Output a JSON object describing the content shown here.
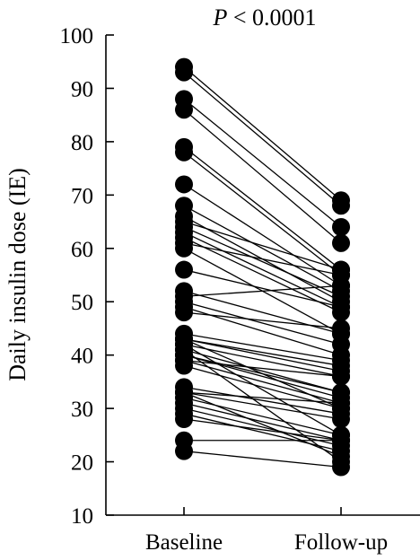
{
  "chart_data": {
    "type": "scatter",
    "subtype": "paired-slope",
    "annotation": {
      "p_symbol": "P",
      "p_rest": " < 0.0001"
    },
    "ylabel": "Daily insulin dose (IE)",
    "xlabel": "",
    "categories": [
      "Baseline",
      "Follow-up"
    ],
    "ylim": [
      10,
      100
    ],
    "yticks": [
      10,
      20,
      30,
      40,
      50,
      60,
      70,
      80,
      90,
      100
    ],
    "legend": "none",
    "grid": false,
    "marker_color": "#000000",
    "line_color": "#000000",
    "pairs": [
      [
        94,
        69
      ],
      [
        93,
        68
      ],
      [
        88,
        64
      ],
      [
        86,
        61
      ],
      [
        79,
        56
      ],
      [
        78,
        55
      ],
      [
        72,
        53
      ],
      [
        68,
        52
      ],
      [
        66,
        50
      ],
      [
        65,
        56
      ],
      [
        64,
        51
      ],
      [
        63,
        49
      ],
      [
        62,
        48
      ],
      [
        61,
        55
      ],
      [
        60,
        44
      ],
      [
        56,
        49
      ],
      [
        52,
        44
      ],
      [
        51,
        53
      ],
      [
        50,
        42
      ],
      [
        49,
        40
      ],
      [
        48,
        45
      ],
      [
        44,
        39
      ],
      [
        43,
        38
      ],
      [
        43,
        37
      ],
      [
        42,
        36
      ],
      [
        41,
        33
      ],
      [
        40,
        32
      ],
      [
        39,
        31
      ],
      [
        38,
        30
      ],
      [
        34,
        29
      ],
      [
        33,
        31
      ],
      [
        33,
        28
      ],
      [
        32,
        25
      ],
      [
        31,
        24
      ],
      [
        30,
        23
      ],
      [
        29,
        22
      ],
      [
        28,
        24
      ],
      [
        24,
        24
      ],
      [
        22,
        19
      ],
      [
        43,
        30
      ],
      [
        42,
        25
      ],
      [
        41,
        20
      ],
      [
        40,
        33
      ],
      [
        39,
        36
      ],
      [
        33,
        21
      ]
    ]
  }
}
